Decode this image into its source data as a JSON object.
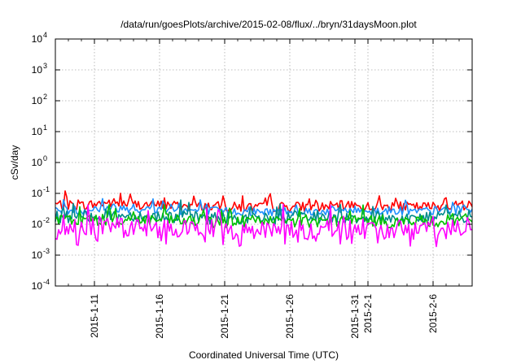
{
  "chart_data": {
    "type": "line",
    "title": "/data/run/goesPlots/archive/2015-02-08/flux/../bryn/31daysMoon.plot",
    "xlabel": "Coordinated Universal Time (UTC)",
    "ylabel": "cSv/day",
    "yscale": "log",
    "ylim": [
      0.0001,
      10000
    ],
    "xlim": [
      "2015-01-08",
      "2015-02-09"
    ],
    "grid": true,
    "legend": "none",
    "y_ticks": [
      {
        "base": "10",
        "exp": "-4"
      },
      {
        "base": "10",
        "exp": "-3"
      },
      {
        "base": "10",
        "exp": "-2"
      },
      {
        "base": "10",
        "exp": "-1"
      },
      {
        "base": "10",
        "exp": "0"
      },
      {
        "base": "10",
        "exp": "1"
      },
      {
        "base": "10",
        "exp": "2"
      },
      {
        "base": "10",
        "exp": "3"
      },
      {
        "base": "10",
        "exp": "4"
      }
    ],
    "x_ticks": [
      {
        "date": "2015-01-11",
        "label": "2015-1-11"
      },
      {
        "date": "2015-01-16",
        "label": "2015-1-16"
      },
      {
        "date": "2015-01-21",
        "label": "2015-1-21"
      },
      {
        "date": "2015-01-26",
        "label": "2015-1-26"
      },
      {
        "date": "2015-01-31",
        "label": "2015-1-31"
      },
      {
        "date": "2015-02-01",
        "label": "2015-2-1"
      },
      {
        "date": "2015-02-06",
        "label": "2015-2-6"
      }
    ],
    "series": [
      {
        "color": "#ff0000",
        "x": [
          "2015-01-08",
          "2015-01-10",
          "2015-01-12",
          "2015-01-14",
          "2015-01-16",
          "2015-01-18",
          "2015-01-20",
          "2015-01-22",
          "2015-01-24",
          "2015-01-26",
          "2015-01-28",
          "2015-01-30",
          "2015-02-01",
          "2015-02-03",
          "2015-02-05",
          "2015-02-07",
          "2015-02-09"
        ],
        "values": [
          0.045,
          0.04,
          0.05,
          0.045,
          0.042,
          0.04,
          0.038,
          0.036,
          0.035,
          0.038,
          0.036,
          0.04,
          0.038,
          0.037,
          0.036,
          0.04,
          0.042
        ]
      },
      {
        "color": "#1e90ff",
        "x": [
          "2015-01-08",
          "2015-01-10",
          "2015-01-12",
          "2015-01-14",
          "2015-01-16",
          "2015-01-18",
          "2015-01-20",
          "2015-01-22",
          "2015-01-24",
          "2015-01-26",
          "2015-01-28",
          "2015-01-30",
          "2015-02-01",
          "2015-02-03",
          "2015-02-05",
          "2015-02-07",
          "2015-02-09"
        ],
        "values": [
          0.03,
          0.028,
          0.035,
          0.032,
          0.03,
          0.028,
          0.027,
          0.026,
          0.025,
          0.027,
          0.026,
          0.029,
          0.028,
          0.027,
          0.026,
          0.029,
          0.03
        ]
      },
      {
        "color": "#008b8b",
        "x": [
          "2015-01-08",
          "2015-01-10",
          "2015-01-12",
          "2015-01-14",
          "2015-01-16",
          "2015-01-18",
          "2015-01-20",
          "2015-01-22",
          "2015-01-24",
          "2015-01-26",
          "2015-01-28",
          "2015-01-30",
          "2015-02-01",
          "2015-02-03",
          "2015-02-05",
          "2015-02-07",
          "2015-02-09"
        ],
        "values": [
          0.018,
          0.017,
          0.02,
          0.019,
          0.018,
          0.017,
          0.016,
          0.016,
          0.015,
          0.016,
          0.016,
          0.017,
          0.017,
          0.016,
          0.016,
          0.017,
          0.018
        ]
      },
      {
        "color": "#00c000",
        "x": [
          "2015-01-08",
          "2015-01-10",
          "2015-01-12",
          "2015-01-14",
          "2015-01-16",
          "2015-01-18",
          "2015-01-20",
          "2015-01-22",
          "2015-01-24",
          "2015-01-26",
          "2015-01-28",
          "2015-01-30",
          "2015-02-01",
          "2015-02-03",
          "2015-02-05",
          "2015-02-07",
          "2015-02-09"
        ],
        "values": [
          0.014,
          0.013,
          0.015,
          0.014,
          0.014,
          0.013,
          0.012,
          0.012,
          0.012,
          0.012,
          0.012,
          0.013,
          0.013,
          0.012,
          0.012,
          0.013,
          0.014
        ]
      },
      {
        "color": "#ff00ff",
        "x": [
          "2015-01-08",
          "2015-01-10",
          "2015-01-12",
          "2015-01-14",
          "2015-01-16",
          "2015-01-18",
          "2015-01-20",
          "2015-01-22",
          "2015-01-24",
          "2015-01-26",
          "2015-01-28",
          "2015-01-30",
          "2015-02-01",
          "2015-02-03",
          "2015-02-05",
          "2015-02-07",
          "2015-02-09"
        ],
        "values": [
          0.008,
          0.007,
          0.01,
          0.008,
          0.008,
          0.007,
          0.007,
          0.006,
          0.006,
          0.007,
          0.006,
          0.008,
          0.007,
          0.007,
          0.006,
          0.007,
          0.008
        ]
      }
    ]
  }
}
